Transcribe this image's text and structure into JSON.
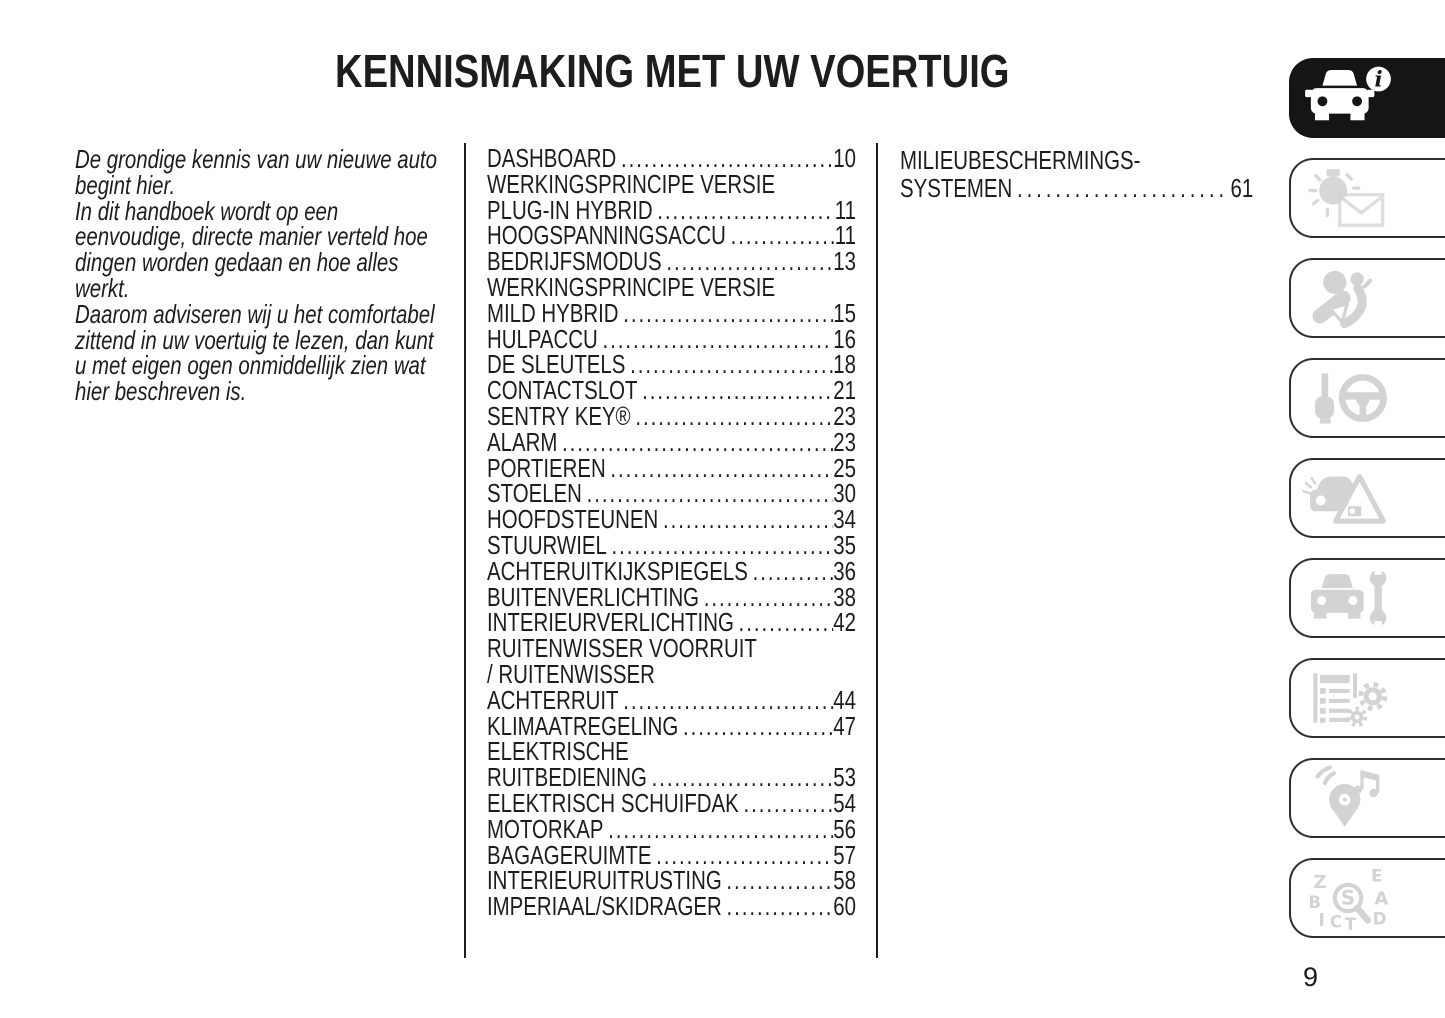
{
  "page": {
    "title": "KENNISMAKING MET UW VOERTUIG",
    "page_number": "9"
  },
  "intro": {
    "lines": [
      "De grondige kennis van uw nieuwe auto",
      "begint hier.",
      "In dit handboek wordt op een",
      "eenvoudige, directe manier verteld hoe",
      "dingen worden gedaan en hoe alles",
      "werkt.",
      "Daarom adviseren wij u het comfortabel",
      "zittend in uw voertuig te lezen, dan kunt",
      "u met eigen ogen onmiddellijk zien wat",
      "hier beschreven is."
    ]
  },
  "toc": {
    "column1": [
      {
        "lines": [
          "DASHBOARD"
        ],
        "page": "10"
      },
      {
        "lines": [
          "WERKINGSPRINCIPE VERSIE",
          "PLUG-IN HYBRID"
        ],
        "page": "11"
      },
      {
        "lines": [
          "HOOGSPANNINGSACCU"
        ],
        "page": "11"
      },
      {
        "lines": [
          "BEDRIJFSMODUS"
        ],
        "page": "13"
      },
      {
        "lines": [
          "WERKINGSPRINCIPE VERSIE",
          "MILD HYBRID"
        ],
        "page": "15"
      },
      {
        "lines": [
          "HULPACCU"
        ],
        "page": "16"
      },
      {
        "lines": [
          "DE SLEUTELS"
        ],
        "page": "18"
      },
      {
        "lines": [
          "CONTACTSLOT"
        ],
        "page": "21"
      },
      {
        "lines": [
          "SENTRY KEY®"
        ],
        "page": "23"
      },
      {
        "lines": [
          "ALARM"
        ],
        "page": "23"
      },
      {
        "lines": [
          "PORTIEREN"
        ],
        "page": "25"
      },
      {
        "lines": [
          "STOELEN"
        ],
        "page": "30"
      },
      {
        "lines": [
          "HOOFDSTEUNEN"
        ],
        "page": "34"
      },
      {
        "lines": [
          "STUURWIEL"
        ],
        "page": "35"
      },
      {
        "lines": [
          "ACHTERUITKIJKSPIEGELS"
        ],
        "page": "36"
      },
      {
        "lines": [
          "BUITENVERLICHTING"
        ],
        "page": "38"
      },
      {
        "lines": [
          "INTERIEURVERLICHTING"
        ],
        "page": "42"
      },
      {
        "lines": [
          "RUITENWISSER VOORRUIT",
          "/ RUITENWISSER",
          "ACHTERRUIT"
        ],
        "page": "44"
      },
      {
        "lines": [
          "KLIMAATREGELING"
        ],
        "page": "47"
      },
      {
        "lines": [
          "ELEKTRISCHE",
          "RUITBEDIENING"
        ],
        "page": "53"
      },
      {
        "lines": [
          "ELEKTRISCH SCHUIFDAK"
        ],
        "page": "54"
      },
      {
        "lines": [
          "MOTORKAP"
        ],
        "page": "56"
      },
      {
        "lines": [
          "BAGAGERUIMTE"
        ],
        "page": "57"
      },
      {
        "lines": [
          "INTERIEURUITRUSTING"
        ],
        "page": "58"
      },
      {
        "lines": [
          "IMPERIAAL/SKIDRAGER"
        ],
        "page": "60"
      }
    ],
    "column2": [
      {
        "lines": [
          "MILIEUBESCHERMINGS-",
          "SYSTEMEN"
        ],
        "page": "61"
      }
    ]
  },
  "sidebar": {
    "tabs": [
      {
        "icon": "car-info-icon",
        "active": true
      },
      {
        "icon": "warning-light-message-icon",
        "active": false
      },
      {
        "icon": "seatbelt-safety-icon",
        "active": false
      },
      {
        "icon": "key-steering-wheel-icon",
        "active": false
      },
      {
        "icon": "emergency-warning-triangle-icon",
        "active": false
      },
      {
        "icon": "car-maintenance-wrench-icon",
        "active": false
      },
      {
        "icon": "technical-data-gears-icon",
        "active": false
      },
      {
        "icon": "multimedia-navigation-icon",
        "active": false
      },
      {
        "icon": "alphabetical-index-icon",
        "active": false
      }
    ]
  },
  "colors": {
    "text": "#1d1d1b",
    "active_tab_bg": "#151515",
    "inactive_icon_gray": "#d3d3d3",
    "tab_border": "#2f2f2e"
  }
}
